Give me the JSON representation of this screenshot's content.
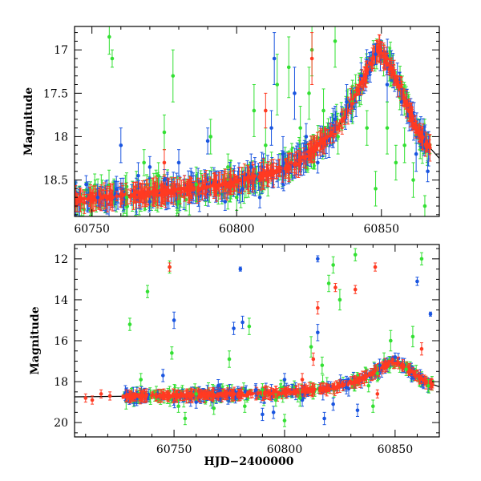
{
  "colors": {
    "red": "#ff3a22",
    "green": "#33e033",
    "blue": "#1a55e0",
    "model": "#000000"
  },
  "chart_data": [
    {
      "type": "scatter",
      "title": "",
      "xlabel": "",
      "ylabel": "Magnitude",
      "xlim": [
        60744,
        60870
      ],
      "ylim": [
        18.92,
        16.73
      ],
      "y_inverted": true,
      "grid": false,
      "xticks": [
        60750,
        60800,
        60850
      ],
      "xtick_labels": [
        "60750",
        "60800",
        "60850"
      ],
      "yticks": [
        17,
        17.5,
        18,
        18.5
      ],
      "ytick_labels": [
        "17",
        "17.5",
        "18",
        "18.5"
      ],
      "series": [
        {
          "color": "blue",
          "points": [
            [
              60748,
              18.55,
              0.1
            ],
            [
              60752,
              18.7,
              0.1
            ],
            [
              60760,
              18.6,
              0.12
            ],
            [
              60766,
              18.45,
              0.15
            ],
            [
              60770,
              18.75,
              0.1
            ],
            [
              60775,
              18.5,
              0.12
            ],
            [
              60780,
              18.3,
              0.15
            ],
            [
              60785,
              18.65,
              0.12
            ],
            [
              60790,
              18.55,
              0.12
            ],
            [
              60796,
              18.75,
              0.1
            ],
            [
              60802,
              18.6,
              0.15
            ],
            [
              60808,
              18.7,
              0.12
            ],
            [
              60812,
              17.9,
              0.2
            ],
            [
              60816,
              18.2,
              0.2
            ],
            [
              60820,
              17.5,
              0.3
            ],
            [
              60824,
              18.0,
              0.15
            ],
            [
              60828,
              18.3,
              0.12
            ],
            [
              60834,
              17.8,
              0.15
            ],
            [
              60838,
              17.6,
              0.2
            ],
            [
              60843,
              17.3,
              0.15
            ],
            [
              60848,
              17.05,
              0.12
            ],
            [
              60852,
              17.4,
              0.2
            ],
            [
              60857,
              17.6,
              0.15
            ],
            [
              60862,
              18.2,
              0.2
            ],
            [
              60866,
              18.4,
              0.12
            ],
            [
              60813,
              17.1,
              0.3
            ],
            [
              60760,
              18.1,
              0.2
            ],
            [
              60790,
              18.05,
              0.15
            ],
            [
              60770,
              18.35,
              0.12
            ],
            [
              60805,
              18.35,
              0.15
            ]
          ]
        },
        {
          "color": "green",
          "points": [
            [
              60756,
              16.85,
              0.2
            ],
            [
              60757,
              17.1,
              0.1
            ],
            [
              60768,
              18.3,
              0.15
            ],
            [
              60775,
              17.95,
              0.2
            ],
            [
              60778,
              17.3,
              0.3
            ],
            [
              60786,
              18.55,
              0.2
            ],
            [
              60791,
              18.0,
              0.2
            ],
            [
              60797,
              18.35,
              0.15
            ],
            [
              60806,
              17.7,
              0.3
            ],
            [
              60810,
              18.1,
              0.2
            ],
            [
              60814,
              17.4,
              0.35
            ],
            [
              60818,
              17.2,
              0.35
            ],
            [
              60822,
              17.9,
              0.25
            ],
            [
              60825,
              17.5,
              0.3
            ],
            [
              60830,
              17.7,
              0.25
            ],
            [
              60835,
              18.0,
              0.2
            ],
            [
              60840,
              17.6,
              0.25
            ],
            [
              60845,
              17.9,
              0.2
            ],
            [
              60852,
              17.9,
              0.3
            ],
            [
              60855,
              18.3,
              0.2
            ],
            [
              60858,
              18.1,
              0.2
            ],
            [
              60861,
              18.5,
              0.2
            ],
            [
              60865,
              18.8,
              0.12
            ],
            [
              60834,
              16.9,
              0.3
            ],
            [
              60800,
              18.7,
              0.15
            ],
            [
              60780,
              18.75,
              0.12
            ],
            [
              60762,
              18.7,
              0.12
            ],
            [
              60848,
              18.6,
              0.2
            ],
            [
              60826,
              17.0,
              0.3
            ],
            [
              60773,
              18.45,
              0.15
            ]
          ]
        },
        {
          "color": "red",
          "points": [
            [
              60745,
              18.72,
              0.06
            ],
            [
              60750,
              18.7,
              0.06
            ],
            [
              60755,
              18.68,
              0.06
            ],
            [
              60760,
              18.66,
              0.06
            ],
            [
              60765,
              18.65,
              0.06
            ],
            [
              60770,
              18.64,
              0.06
            ],
            [
              60775,
              18.62,
              0.06
            ],
            [
              60780,
              18.6,
              0.06
            ],
            [
              60785,
              18.6,
              0.06
            ],
            [
              60790,
              18.58,
              0.06
            ],
            [
              60795,
              18.55,
              0.06
            ],
            [
              60800,
              18.52,
              0.06
            ],
            [
              60805,
              18.48,
              0.06
            ],
            [
              60810,
              18.45,
              0.06
            ],
            [
              60815,
              18.4,
              0.06
            ],
            [
              60820,
              18.32,
              0.06
            ],
            [
              60825,
              18.22,
              0.06
            ],
            [
              60830,
              18.08,
              0.06
            ],
            [
              60835,
              17.9,
              0.06
            ],
            [
              60840,
              17.62,
              0.06
            ],
            [
              60843,
              17.38,
              0.06
            ],
            [
              60846,
              17.15,
              0.06
            ],
            [
              60849,
              16.98,
              0.06
            ],
            [
              60852,
              17.1,
              0.06
            ],
            [
              60855,
              17.35,
              0.06
            ],
            [
              60858,
              17.6,
              0.06
            ],
            [
              60861,
              17.85,
              0.06
            ],
            [
              60864,
              18.0,
              0.06
            ],
            [
              60866,
              18.1,
              0.06
            ],
            [
              60826,
              17.1,
              0.3
            ],
            [
              60775,
              18.3,
              0.15
            ],
            [
              60810,
              17.7,
              0.2
            ]
          ]
        }
      ],
      "model_line": [
        [
          60744,
          18.73
        ],
        [
          60780,
          18.62
        ],
        [
          60800,
          18.53
        ],
        [
          60820,
          18.33
        ],
        [
          60835,
          17.9
        ],
        [
          60843,
          17.4
        ],
        [
          60849,
          16.98
        ],
        [
          60855,
          17.32
        ],
        [
          60862,
          17.9
        ],
        [
          60866,
          18.1
        ],
        [
          60870,
          18.25
        ]
      ]
    },
    {
      "type": "scatter",
      "title": "",
      "xlabel": "HJD−2400000",
      "ylabel": "Magnitude",
      "xlim": [
        60705,
        60870
      ],
      "ylim": [
        20.7,
        11.3
      ],
      "y_inverted": true,
      "grid": false,
      "xticks": [
        60750,
        60800,
        60850
      ],
      "xtick_labels": [
        "60750",
        "60800",
        "60850"
      ],
      "yticks": [
        12,
        14,
        16,
        18,
        20
      ],
      "ytick_labels": [
        "12",
        "14",
        "16",
        "18",
        "20"
      ],
      "series": [
        {
          "color": "blue",
          "points": [
            [
              60745,
              17.7,
              0.3
            ],
            [
              60750,
              15.0,
              0.4
            ],
            [
              60760,
              19.0,
              0.3
            ],
            [
              60770,
              18.2,
              0.3
            ],
            [
              60777,
              15.4,
              0.3
            ],
            [
              60780,
              12.5,
              0.1
            ],
            [
              60781,
              15.1,
              0.3
            ],
            [
              60787,
              18.4,
              0.3
            ],
            [
              60795,
              19.5,
              0.3
            ],
            [
              60800,
              17.9,
              0.3
            ],
            [
              60808,
              18.9,
              0.3
            ],
            [
              60815,
              15.6,
              0.4
            ],
            [
              60815,
              12.0,
              0.15
            ],
            [
              60822,
              19.1,
              0.3
            ],
            [
              60828,
              18.3,
              0.3
            ],
            [
              60833,
              19.4,
              0.3
            ],
            [
              60843,
              17.2,
              0.3
            ],
            [
              60850,
              16.8,
              0.2
            ],
            [
              60860,
              13.1,
              0.2
            ],
            [
              60866,
              14.7,
              0.1
            ],
            [
              60790,
              19.6,
              0.3
            ],
            [
              60818,
              19.8,
              0.3
            ]
          ]
        },
        {
          "color": "green",
          "points": [
            [
              60730,
              15.2,
              0.3
            ],
            [
              60735,
              17.9,
              0.3
            ],
            [
              60738,
              13.6,
              0.3
            ],
            [
              60748,
              12.4,
              0.3
            ],
            [
              60749,
              16.6,
              0.3
            ],
            [
              60752,
              19.2,
              0.3
            ],
            [
              60755,
              19.8,
              0.3
            ],
            [
              60760,
              18.6,
              0.3
            ],
            [
              60768,
              19.3,
              0.3
            ],
            [
              60775,
              16.9,
              0.4
            ],
            [
              60782,
              19.2,
              0.3
            ],
            [
              60784,
              15.3,
              0.4
            ],
            [
              60790,
              18.4,
              0.3
            ],
            [
              60800,
              19.9,
              0.3
            ],
            [
              60807,
              18.8,
              0.4
            ],
            [
              60812,
              16.3,
              0.5
            ],
            [
              60817,
              17.2,
              0.4
            ],
            [
              60820,
              13.2,
              0.4
            ],
            [
              60822,
              12.3,
              0.4
            ],
            [
              60825,
              14.0,
              0.5
            ],
            [
              60832,
              11.8,
              0.3
            ],
            [
              60838,
              18.2,
              0.3
            ],
            [
              60842,
              17.6,
              0.4
            ],
            [
              60848,
              16.0,
              0.5
            ],
            [
              60855,
              17.4,
              0.3
            ],
            [
              60858,
              15.8,
              0.5
            ],
            [
              60862,
              12.0,
              0.3
            ],
            [
              60865,
              18.2,
              0.3
            ],
            [
              60840,
              19.2,
              0.3
            ],
            [
              60796,
              18.9,
              0.3
            ]
          ]
        },
        {
          "color": "red",
          "points": [
            [
              60710,
              18.8,
              0.2
            ],
            [
              60713,
              18.9,
              0.2
            ],
            [
              60717,
              18.6,
              0.2
            ],
            [
              60721,
              18.7,
              0.2
            ],
            [
              60748,
              12.4,
              0.2
            ],
            [
              60815,
              14.4,
              0.3
            ],
            [
              60823,
              13.4,
              0.2
            ],
            [
              60832,
              13.5,
              0.2
            ],
            [
              60841,
              12.4,
              0.2
            ],
            [
              60842,
              18.6,
              0.2
            ],
            [
              60862,
              16.4,
              0.3
            ],
            [
              60813,
              16.9,
              0.3
            ],
            [
              60808,
              17.9,
              0.3
            ]
          ]
        }
      ],
      "model_line": [
        [
          60705,
          18.74
        ],
        [
          60740,
          18.7
        ],
        [
          60780,
          18.62
        ],
        [
          60800,
          18.53
        ],
        [
          60820,
          18.33
        ],
        [
          60835,
          17.9
        ],
        [
          60843,
          17.4
        ],
        [
          60849,
          16.98
        ],
        [
          60855,
          17.32
        ],
        [
          60862,
          17.9
        ],
        [
          60866,
          18.1
        ],
        [
          60870,
          18.25
        ]
      ]
    }
  ]
}
